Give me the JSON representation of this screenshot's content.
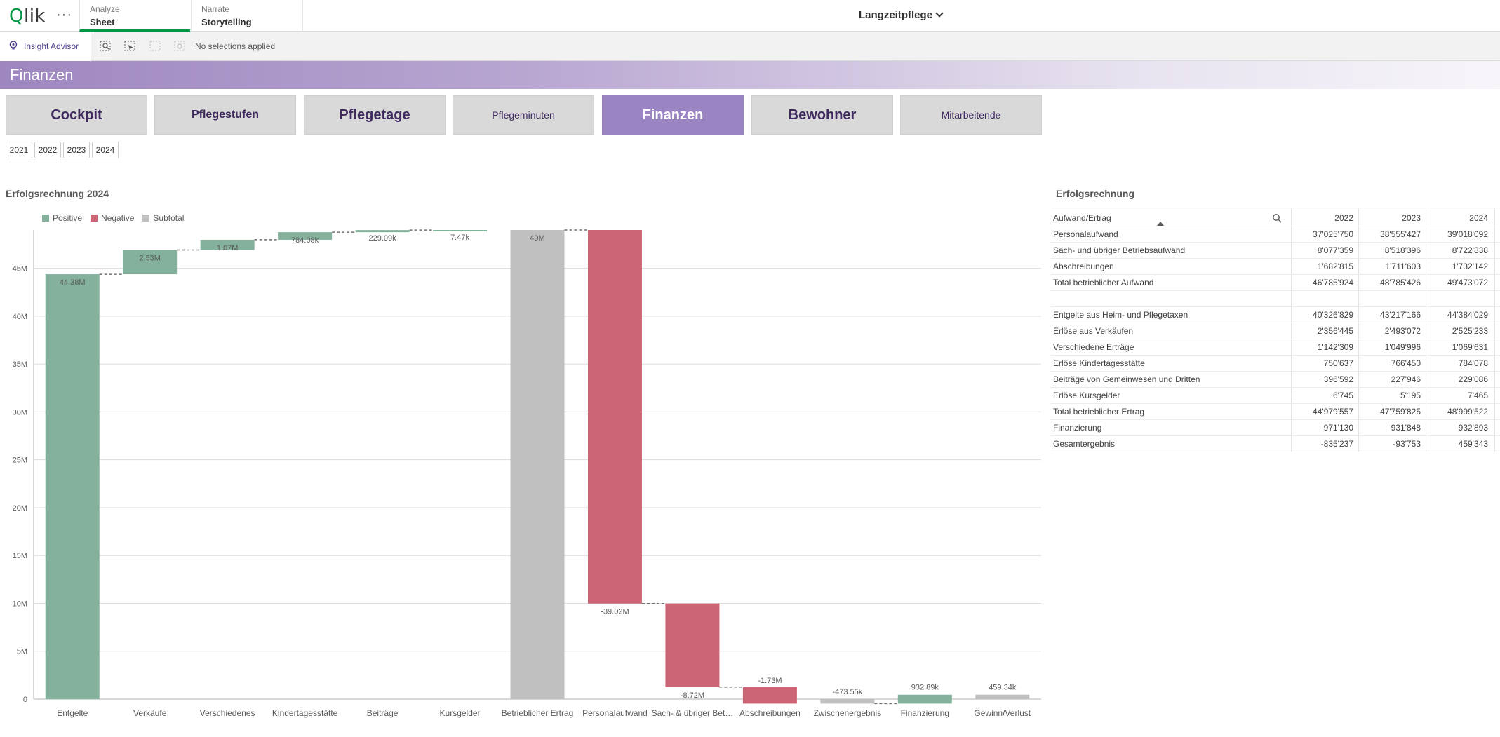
{
  "app": {
    "logo": "Qlik",
    "menu_icon": "more-dots-icon",
    "title": "Langzeitpflege"
  },
  "nav_tabs": [
    {
      "small": "Analyze",
      "big": "Sheet"
    },
    {
      "small": "Narrate",
      "big": "Storytelling"
    }
  ],
  "toolbar": {
    "insight_label": "Insight Advisor",
    "selection_text": "No selections applied"
  },
  "banner": {
    "title": "Finanzen"
  },
  "sheet_buttons": [
    "Cockpit",
    "Pflegestufen",
    "Pflegetage",
    "Pflegeminuten",
    "Finanzen",
    "Bewohner",
    "Mitarbeitende"
  ],
  "active_sheet": "Finanzen",
  "years": [
    "2021",
    "2022",
    "2023",
    "2024"
  ],
  "colors": {
    "positive": "#84b19b",
    "negative": "#cc6677",
    "subtotal": "#c0c0c0",
    "accent": "#9a84c2",
    "qlik_green": "#009845"
  },
  "chart_data": {
    "type": "bar",
    "variant": "waterfall",
    "title": "Erfolgsrechnung 2024",
    "legend": [
      "Positive",
      "Negative",
      "Subtotal"
    ],
    "legend_position": "top-left",
    "grid": true,
    "ylim": [
      0,
      49
    ],
    "yticks": [
      "0",
      "5M",
      "10M",
      "15M",
      "20M",
      "25M",
      "30M",
      "35M",
      "40M",
      "45M"
    ],
    "categories": [
      "Entgelte",
      "Verkäufe",
      "Verschiedenes",
      "Kindertagesstätte",
      "Beiträge",
      "Kursgelder",
      "Betrieblicher Ertrag",
      "Personalaufwand",
      "Sach- & übriger Bet…",
      "Abschreibungen",
      "Zwischenergebnis",
      "Finanzierung",
      "Gewinn/Verlust"
    ],
    "bars": [
      {
        "kind": "positive",
        "start": 0,
        "end": 44.38,
        "label": "44.38M"
      },
      {
        "kind": "positive",
        "start": 44.38,
        "end": 46.91,
        "label": "2.53M"
      },
      {
        "kind": "positive",
        "start": 46.91,
        "end": 47.98,
        "label": "1.07M"
      },
      {
        "kind": "positive",
        "start": 47.98,
        "end": 48.77,
        "label": "784.08k"
      },
      {
        "kind": "positive",
        "start": 48.77,
        "end": 48.99,
        "label": "229.09k"
      },
      {
        "kind": "positive",
        "start": 48.99,
        "end": 49.0,
        "label": "7.47k"
      },
      {
        "kind": "subtotal",
        "start": 0,
        "end": 49.0,
        "label": "49M"
      },
      {
        "kind": "negative",
        "start": 49.0,
        "end": 9.98,
        "label": "-39.02M"
      },
      {
        "kind": "negative",
        "start": 9.98,
        "end": 1.26,
        "label": "-8.72M"
      },
      {
        "kind": "negative",
        "start": 1.26,
        "end": -0.47,
        "label": "-1.73M"
      },
      {
        "kind": "subtotal",
        "start": 0,
        "end": -0.47,
        "label": "-473.55k"
      },
      {
        "kind": "positive",
        "start": -0.47,
        "end": 0.46,
        "label": "932.89k"
      },
      {
        "kind": "subtotal",
        "start": 0,
        "end": 0.46,
        "label": "459.34k"
      }
    ]
  },
  "table": {
    "title": "Erfolgsrechnung",
    "header": "Aufwand/Ertrag",
    "columns": [
      "2022",
      "2023",
      "2024"
    ],
    "rows": [
      {
        "label": "Personalaufwand",
        "values": [
          "37'025'750",
          "38'555'427",
          "39'018'092"
        ]
      },
      {
        "label": "Sach- und übriger Betriebsaufwand",
        "values": [
          "8'077'359",
          "8'518'396",
          "8'722'838"
        ]
      },
      {
        "label": "Abschreibungen",
        "values": [
          "1'682'815",
          "1'711'603",
          "1'732'142"
        ]
      },
      {
        "label": "Total betrieblicher Aufwand",
        "values": [
          "46'785'924",
          "48'785'426",
          "49'473'072"
        ]
      },
      {
        "label": "",
        "values": [
          "",
          "",
          ""
        ]
      },
      {
        "label": "Entgelte aus Heim- und Pflegetaxen",
        "values": [
          "40'326'829",
          "43'217'166",
          "44'384'029"
        ]
      },
      {
        "label": "Erlöse aus Verkäufen",
        "values": [
          "2'356'445",
          "2'493'072",
          "2'525'233"
        ]
      },
      {
        "label": "Verschiedene Erträge",
        "values": [
          "1'142'309",
          "1'049'996",
          "1'069'631"
        ]
      },
      {
        "label": "Erlöse Kindertagesstätte",
        "values": [
          "750'637",
          "766'450",
          "784'078"
        ]
      },
      {
        "label": "Beiträge von Gemeinwesen und Dritten",
        "values": [
          "396'592",
          "227'946",
          "229'086"
        ]
      },
      {
        "label": "Erlöse Kursgelder",
        "values": [
          "6'745",
          "5'195",
          "7'465"
        ]
      },
      {
        "label": "Total betrieblicher Ertrag",
        "values": [
          "44'979'557",
          "47'759'825",
          "48'999'522"
        ]
      },
      {
        "label": "Finanzierung",
        "values": [
          "971'130",
          "931'848",
          "932'893"
        ]
      },
      {
        "label": "Gesamtergebnis",
        "values": [
          "-835'237",
          "-93'753",
          "459'343"
        ]
      }
    ]
  }
}
